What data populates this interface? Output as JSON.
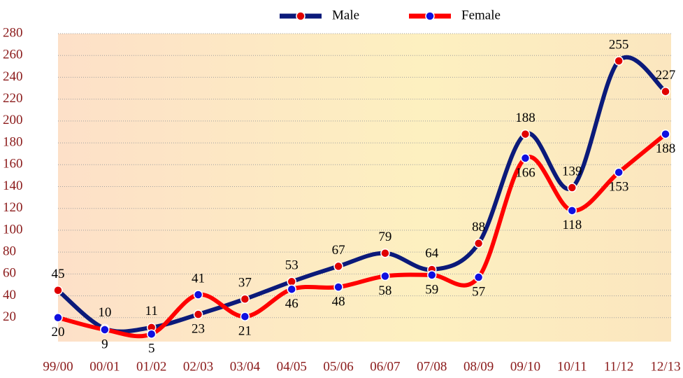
{
  "chart_data": {
    "type": "line",
    "categories": [
      "99/00",
      "00/01",
      "01/02",
      "02/03",
      "03/04",
      "04/05",
      "05/06",
      "06/07",
      "07/08",
      "08/09",
      "09/10",
      "10/11",
      "11/12",
      "12/13"
    ],
    "series": [
      {
        "name": "Male",
        "color": "#0b1a7a",
        "marker_color": "#e00000",
        "values": [
          45,
          10,
          11,
          23,
          37,
          53,
          67,
          79,
          64,
          88,
          188,
          139,
          255,
          227
        ]
      },
      {
        "name": "Female",
        "color": "#ff0000",
        "marker_color": "#1010e0",
        "values": [
          20,
          9,
          5,
          41,
          21,
          46,
          48,
          58,
          59,
          57,
          166,
          118,
          153,
          188
        ]
      }
    ],
    "ylim": [
      0,
      280
    ],
    "yticks": [
      20,
      40,
      60,
      80,
      100,
      120,
      140,
      160,
      180,
      200,
      220,
      240,
      260,
      280
    ],
    "grid": true,
    "legend": "top"
  }
}
